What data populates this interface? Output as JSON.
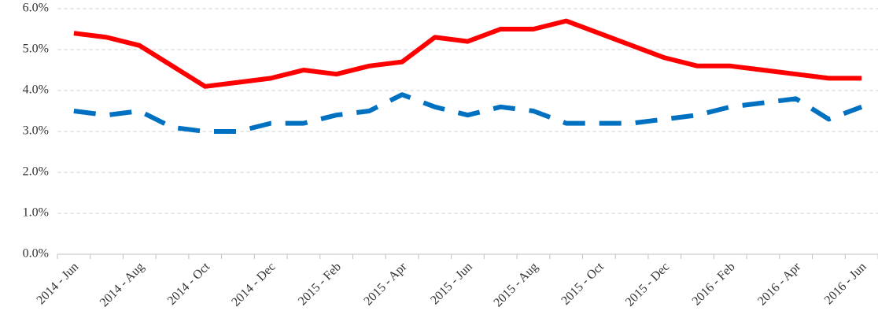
{
  "chart_data": {
    "type": "line",
    "categories": [
      "2014 - Jun",
      null,
      "2014 - Aug",
      null,
      "2014 - Oct",
      null,
      "2014 - Dec",
      null,
      "2015 - Feb",
      null,
      "2015 - Apr",
      null,
      "2015 - Jun",
      null,
      "2015 - Aug",
      null,
      "2015 - Oct",
      null,
      "2015 - Dec",
      null,
      "2016 - Feb",
      null,
      "2016 - Apr",
      null,
      "2016 - Jun"
    ],
    "series": [
      {
        "color": "#ff0000",
        "dashed": false,
        "values": [
          5.4,
          5.3,
          5.1,
          4.6,
          4.1,
          4.2,
          4.3,
          4.5,
          4.4,
          4.6,
          4.7,
          5.3,
          5.2,
          5.5,
          5.5,
          5.7,
          5.4,
          5.1,
          4.8,
          4.6,
          4.6,
          4.5,
          4.4,
          4.3,
          4.3
        ]
      },
      {
        "color": "#0070c0",
        "dashed": true,
        "values": [
          3.5,
          3.4,
          3.5,
          3.1,
          3.0,
          3.0,
          3.2,
          3.2,
          3.4,
          3.5,
          3.9,
          3.6,
          3.4,
          3.6,
          3.5,
          3.2,
          3.2,
          3.2,
          3.3,
          3.4,
          3.6,
          3.7,
          3.8,
          3.3,
          3.6
        ]
      }
    ],
    "ylim": [
      0,
      6
    ],
    "yticks": [
      {
        "value": 0,
        "label": "0.0%"
      },
      {
        "value": 1,
        "label": "1.0%"
      },
      {
        "value": 2,
        "label": "2.0%"
      },
      {
        "value": 3,
        "label": "3.0%"
      },
      {
        "value": 4,
        "label": "4.0%"
      },
      {
        "value": 5,
        "label": "5.0%"
      },
      {
        "value": 6,
        "label": "6.0%"
      }
    ],
    "grid": true
  }
}
